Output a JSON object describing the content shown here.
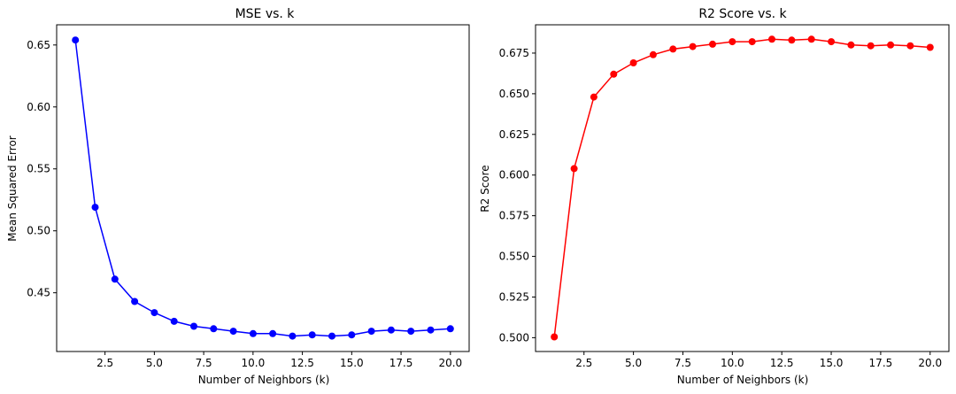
{
  "chart_data": [
    {
      "type": "line",
      "title": "MSE vs. k",
      "xlabel": "Number of Neighbors (k)",
      "ylabel": "Mean Squared Error",
      "xlim": [
        0.05,
        20.95
      ],
      "ylim": [
        0.4026,
        0.6663
      ],
      "xticks": [
        "2.5",
        "5.0",
        "7.5",
        "10.0",
        "12.5",
        "15.0",
        "17.5",
        "20.0"
      ],
      "yticks": [
        "0.45",
        "0.50",
        "0.55",
        "0.60",
        "0.65"
      ],
      "grid": false,
      "color": "#0000ff",
      "x": [
        1,
        2,
        3,
        4,
        5,
        6,
        7,
        8,
        9,
        10,
        11,
        12,
        13,
        14,
        15,
        16,
        17,
        18,
        19,
        20
      ],
      "values": [
        0.654,
        0.519,
        0.461,
        0.443,
        0.434,
        0.427,
        0.423,
        0.421,
        0.419,
        0.417,
        0.417,
        0.415,
        0.416,
        0.415,
        0.416,
        0.419,
        0.42,
        0.419,
        0.42,
        0.421
      ]
    },
    {
      "type": "line",
      "title": "R2 Score vs. k",
      "xlabel": "Number of Neighbors (k)",
      "ylabel": "R2 Score",
      "xlim": [
        0.05,
        20.95
      ],
      "ylim": [
        0.4915,
        0.6924
      ],
      "xticks": [
        "2.5",
        "5.0",
        "7.5",
        "10.0",
        "12.5",
        "15.0",
        "17.5",
        "20.0"
      ],
      "yticks": [
        "0.500",
        "0.525",
        "0.550",
        "0.575",
        "0.600",
        "0.625",
        "0.650",
        "0.675"
      ],
      "grid": false,
      "color": "#ff0000",
      "x": [
        1,
        2,
        3,
        4,
        5,
        6,
        7,
        8,
        9,
        10,
        11,
        12,
        13,
        14,
        15,
        16,
        17,
        18,
        19,
        20
      ],
      "values": [
        0.5005,
        0.604,
        0.648,
        0.662,
        0.669,
        0.674,
        0.6775,
        0.679,
        0.6805,
        0.682,
        0.682,
        0.6835,
        0.683,
        0.6835,
        0.682,
        0.68,
        0.6795,
        0.68,
        0.6795,
        0.6785
      ]
    }
  ]
}
